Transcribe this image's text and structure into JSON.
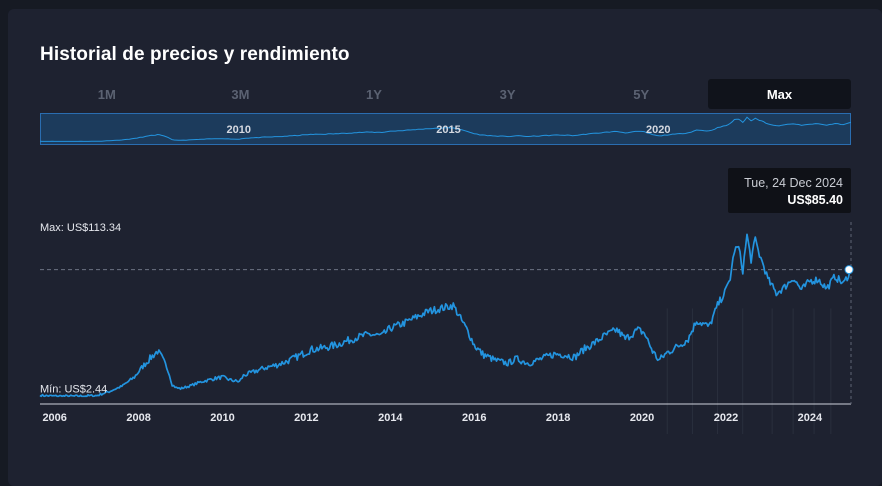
{
  "title": "Historial de precios y rendimiento",
  "range_tabs": [
    "1M",
    "3M",
    "1Y",
    "3Y",
    "5Y",
    "Max"
  ],
  "active_tab": "Max",
  "colors": {
    "background": "#1e2230",
    "line": "#2394df",
    "navigator_fill": "#1c3b5c",
    "navigator_border": "#2a6db0",
    "tooltip_bg": "#0f1117"
  },
  "navigator": {
    "year_labels": [
      {
        "label": "2010",
        "year": 2010
      },
      {
        "label": "2015",
        "year": 2015
      },
      {
        "label": "2020",
        "year": 2020
      }
    ]
  },
  "tooltip": {
    "date": "Tue, 24 Dec 2024",
    "value": "US$85.40"
  },
  "max_label": "Max: US$113.34",
  "min_label": "Mín: US$2.44",
  "chart_data": {
    "type": "line",
    "x_ticks": [
      "2006",
      "2008",
      "2010",
      "2012",
      "2014",
      "2016",
      "2018",
      "2020",
      "2022",
      "2024"
    ],
    "xlim": [
      2005.65,
      2024.98
    ],
    "ylim": [
      0,
      113.34
    ],
    "max": 113.34,
    "min": 2.44,
    "current": 85.4,
    "current_date": "Tue, 24 Dec 2024",
    "series": [
      {
        "x": [
          2005.65,
          2006.0,
          2006.5,
          2007.0,
          2007.3,
          2007.6,
          2007.9,
          2008.1,
          2008.3,
          2008.45,
          2008.55,
          2008.7,
          2008.8,
          2008.9,
          2009.0,
          2009.2,
          2009.5,
          2009.8,
          2010.0,
          2010.2,
          2010.4,
          2010.5,
          2010.8,
          2011.0,
          2011.3,
          2011.6,
          2011.9,
          2012.1,
          2012.4,
          2012.7,
          2012.9,
          2013.2,
          2013.5,
          2013.8,
          2014.0,
          2014.3,
          2014.6,
          2014.9,
          2015.2,
          2015.5,
          2015.7,
          2015.85,
          2016.0,
          2016.2,
          2016.5,
          2016.8,
          2017.0,
          2017.3,
          2017.6,
          2017.9,
          2018.1,
          2018.4,
          2018.6,
          2018.9,
          2019.1,
          2019.4,
          2019.6,
          2019.9,
          2020.05,
          2020.25,
          2020.4,
          2020.6,
          2020.9,
          2021.1,
          2021.3,
          2021.6,
          2021.8,
          2022.0,
          2022.1,
          2022.2,
          2022.3,
          2022.4,
          2022.5,
          2022.6,
          2022.7,
          2022.8,
          2022.9,
          2023.0,
          2023.2,
          2023.4,
          2023.6,
          2023.8,
          2024.0,
          2024.2,
          2024.4,
          2024.6,
          2024.8,
          2024.98
        ],
        "y": [
          3.0,
          2.6,
          2.5,
          2.9,
          5.5,
          9,
          15,
          22,
          28,
          32,
          28,
          20,
          10,
          8,
          7.5,
          9,
          12,
          14,
          15,
          13,
          12,
          16,
          19,
          21,
          23,
          26,
          30,
          33,
          34,
          36,
          38,
          41,
          43,
          42,
          47,
          50,
          54,
          58,
          60,
          62,
          52,
          45,
          36,
          30,
          26,
          24,
          27,
          24,
          27,
          30,
          30,
          28,
          33,
          38,
          42,
          46,
          40,
          46,
          44,
          32,
          26,
          31,
          36,
          40,
          52,
          48,
          62,
          72,
          80,
          98,
          100,
          85,
          108,
          92,
          105,
          95,
          88,
          79,
          70,
          74,
          80,
          72,
          78,
          79,
          73,
          81,
          76,
          85.4
        ]
      }
    ]
  }
}
